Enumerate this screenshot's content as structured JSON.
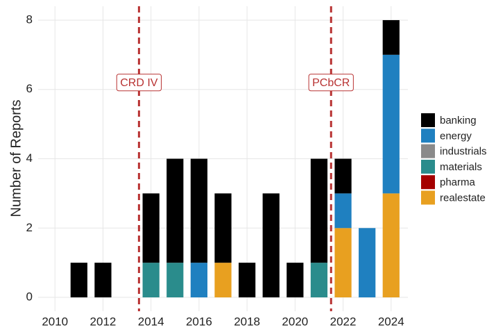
{
  "chart_data": {
    "type": "bar",
    "stacked": true,
    "y_label": "Number of Reports",
    "x": [
      2011,
      2012,
      2014,
      2015,
      2016,
      2017,
      2018,
      2019,
      2020,
      2021,
      2022,
      2023,
      2024
    ],
    "series": [
      {
        "name": "banking",
        "color": "#000000",
        "values": [
          1,
          1,
          2,
          3,
          3,
          2,
          1,
          3,
          1,
          3,
          1,
          0,
          1
        ]
      },
      {
        "name": "energy",
        "color": "#1f80c0",
        "values": [
          0,
          0,
          0,
          0,
          1,
          0,
          0,
          0,
          0,
          0,
          1,
          2,
          4
        ]
      },
      {
        "name": "industrials",
        "color": "#8a8a8a",
        "values": [
          0,
          0,
          0,
          0,
          0,
          0,
          0,
          0,
          0,
          0,
          0,
          0,
          0
        ]
      },
      {
        "name": "materials",
        "color": "#2a8c8c",
        "values": [
          0,
          0,
          1,
          1,
          0,
          0,
          0,
          0,
          0,
          1,
          0,
          0,
          0
        ]
      },
      {
        "name": "pharma",
        "color": "#a50000",
        "values": [
          0,
          0,
          0,
          0,
          0,
          0,
          0,
          0,
          0,
          0,
          0,
          0,
          0
        ]
      },
      {
        "name": "realestate",
        "color": "#e8a020",
        "values": [
          0,
          0,
          0,
          0,
          0,
          1,
          0,
          0,
          0,
          0,
          2,
          0,
          3
        ]
      }
    ],
    "stack_order": [
      "realestate",
      "pharma",
      "materials",
      "industrials",
      "energy",
      "banking"
    ],
    "xlim": [
      2009.3,
      2024.7
    ],
    "xticks": [
      2010,
      2012,
      2014,
      2016,
      2018,
      2020,
      2022,
      2024
    ],
    "ylim": [
      -0.4,
      8.4
    ],
    "yticks": [
      0,
      2,
      4,
      6,
      8
    ],
    "grid": true,
    "annotations": [
      {
        "x": 2013.5,
        "y": 6.2,
        "label": "CRD IV",
        "color": "#b83232"
      },
      {
        "x": 2021.5,
        "y": 6.2,
        "label": "PCbCR",
        "color": "#b83232"
      }
    ]
  }
}
